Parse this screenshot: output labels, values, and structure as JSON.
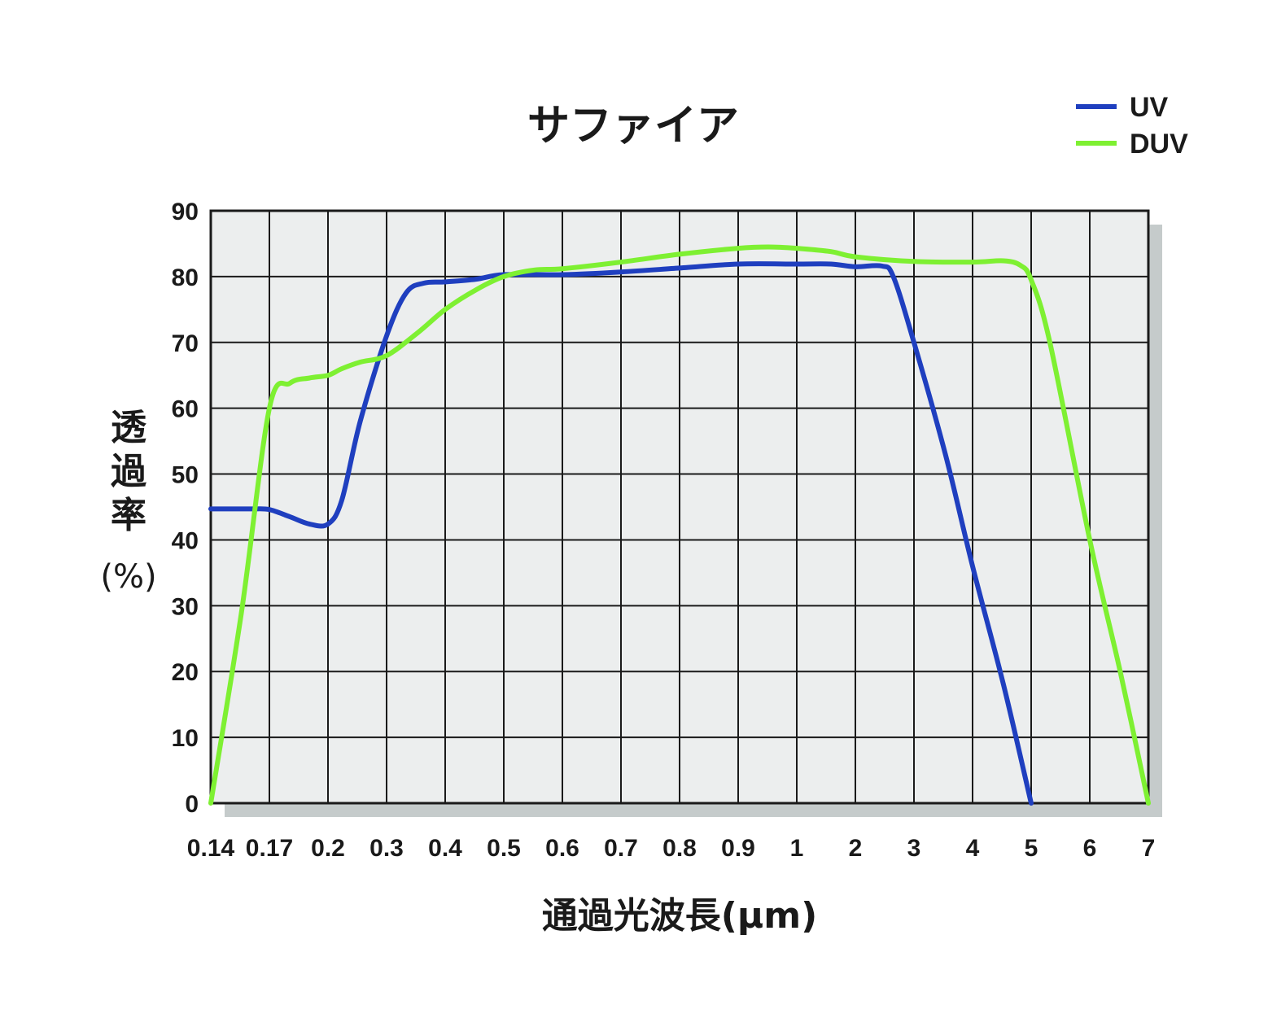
{
  "chart_data": {
    "type": "line",
    "title": "サファイア",
    "xlabel": "通過光波長(μm)",
    "ylabel": "透過率",
    "ylabel_unit": "(%)",
    "x_scale": "categorical-log",
    "x_ticks": [
      "0.14",
      "0.17",
      "0.2",
      "0.3",
      "0.4",
      "0.5",
      "0.6",
      "0.7",
      "0.8",
      "0.9",
      "1",
      "2",
      "3",
      "4",
      "5",
      "6",
      "7"
    ],
    "y_ticks": [
      "0",
      "10",
      "20",
      "30",
      "40",
      "50",
      "60",
      "70",
      "80",
      "90"
    ],
    "ylim": [
      0,
      90
    ],
    "grid": true,
    "legend_position": "top-right",
    "series": [
      {
        "name": "UV",
        "color": "#1f3fbf",
        "points": [
          [
            0.14,
            44.7
          ],
          [
            0.15,
            44.7
          ],
          [
            0.16,
            44.7
          ],
          [
            0.17,
            44.6
          ],
          [
            0.18,
            43.5
          ],
          [
            0.19,
            42.4
          ],
          [
            0.2,
            42.4
          ],
          [
            0.22,
            46.0
          ],
          [
            0.25,
            58.0
          ],
          [
            0.3,
            71.0
          ],
          [
            0.33,
            77.5
          ],
          [
            0.36,
            79.0
          ],
          [
            0.4,
            79.2
          ],
          [
            0.45,
            79.6
          ],
          [
            0.5,
            80.3
          ],
          [
            0.6,
            80.3
          ],
          [
            0.7,
            80.7
          ],
          [
            0.8,
            81.3
          ],
          [
            0.9,
            81.9
          ],
          [
            1,
            81.9
          ],
          [
            1.5,
            81.9
          ],
          [
            2,
            81.5
          ],
          [
            2.4,
            81.6
          ],
          [
            2.6,
            80.0
          ],
          [
            3,
            70.0
          ],
          [
            3.5,
            53.0
          ],
          [
            4,
            36.0
          ],
          [
            4.5,
            18.0
          ],
          [
            5,
            0.0
          ]
        ]
      },
      {
        "name": "DUV",
        "color": "#7ef032",
        "points": [
          [
            0.14,
            0.0
          ],
          [
            0.155,
            29.0
          ],
          [
            0.17,
            60.0
          ],
          [
            0.18,
            63.8
          ],
          [
            0.19,
            64.6
          ],
          [
            0.2,
            65.0
          ],
          [
            0.22,
            66.0
          ],
          [
            0.25,
            67.0
          ],
          [
            0.3,
            68.0
          ],
          [
            0.35,
            71.5
          ],
          [
            0.4,
            75.0
          ],
          [
            0.45,
            78.0
          ],
          [
            0.5,
            80.0
          ],
          [
            0.55,
            81.0
          ],
          [
            0.6,
            81.2
          ],
          [
            0.7,
            82.2
          ],
          [
            0.8,
            83.4
          ],
          [
            0.9,
            84.3
          ],
          [
            0.95,
            84.5
          ],
          [
            1,
            84.3
          ],
          [
            1.5,
            83.8
          ],
          [
            2,
            83.0
          ],
          [
            3,
            82.3
          ],
          [
            4,
            82.2
          ],
          [
            4.5,
            82.4
          ],
          [
            4.8,
            81.7
          ],
          [
            5,
            79.5
          ],
          [
            5.3,
            70.0
          ],
          [
            6,
            40.0
          ],
          [
            6.5,
            20.0
          ],
          [
            7,
            0.0
          ]
        ]
      }
    ]
  }
}
